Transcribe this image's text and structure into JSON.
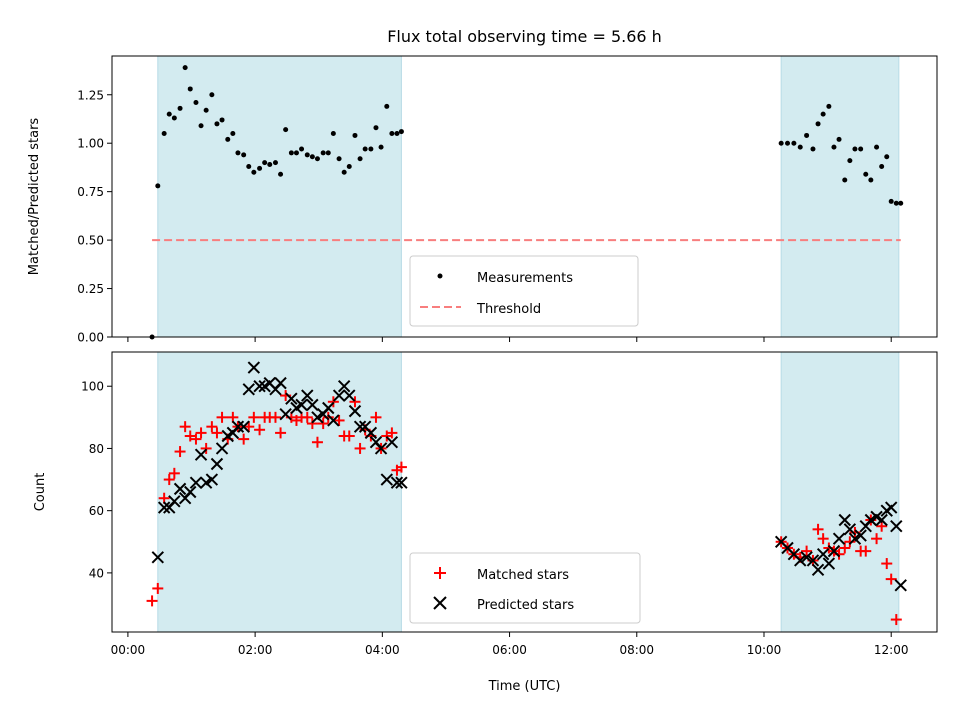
{
  "chart_data": [
    {
      "type": "scatter",
      "title": "Flux total observing time = 5.66 h",
      "ylabel": "Matched/Predicted stars",
      "xlabel": "",
      "ylim": [
        0,
        1.45
      ],
      "grid": false,
      "legend": "bottom-center",
      "yticks": [
        "0.00",
        "0.25",
        "0.50",
        "0.75",
        "1.00",
        "1.25"
      ],
      "observing_windows_hours": [
        [
          0.47,
          4.3
        ],
        [
          10.27,
          12.12
        ]
      ],
      "window_color": "#d3ebf0",
      "threshold": {
        "name": "Threshold",
        "value": 0.5,
        "color": "#f87e7e",
        "style": "dashed"
      },
      "series": [
        {
          "name": "Measurements",
          "color": "#000000",
          "marker": "dot",
          "points": [
            [
              0.38,
              0.0
            ],
            [
              0.47,
              0.78
            ],
            [
              0.57,
              1.05
            ],
            [
              0.65,
              1.15
            ],
            [
              0.73,
              1.13
            ],
            [
              0.82,
              1.18
            ],
            [
              0.9,
              1.39
            ],
            [
              0.98,
              1.28
            ],
            [
              1.07,
              1.21
            ],
            [
              1.15,
              1.09
            ],
            [
              1.23,
              1.17
            ],
            [
              1.32,
              1.25
            ],
            [
              1.4,
              1.1
            ],
            [
              1.48,
              1.12
            ],
            [
              1.57,
              1.02
            ],
            [
              1.65,
              1.05
            ],
            [
              1.73,
              0.95
            ],
            [
              1.82,
              0.94
            ],
            [
              1.9,
              0.88
            ],
            [
              1.98,
              0.85
            ],
            [
              2.07,
              0.87
            ],
            [
              2.15,
              0.9
            ],
            [
              2.23,
              0.89
            ],
            [
              2.32,
              0.9
            ],
            [
              2.4,
              0.84
            ],
            [
              2.48,
              1.07
            ],
            [
              2.57,
              0.95
            ],
            [
              2.65,
              0.95
            ],
            [
              2.73,
              0.97
            ],
            [
              2.82,
              0.94
            ],
            [
              2.9,
              0.93
            ],
            [
              2.98,
              0.92
            ],
            [
              3.07,
              0.95
            ],
            [
              3.15,
              0.95
            ],
            [
              3.23,
              1.05
            ],
            [
              3.32,
              0.92
            ],
            [
              3.4,
              0.85
            ],
            [
              3.48,
              0.88
            ],
            [
              3.57,
              1.04
            ],
            [
              3.65,
              0.92
            ],
            [
              3.73,
              0.97
            ],
            [
              3.82,
              0.97
            ],
            [
              3.9,
              1.08
            ],
            [
              3.98,
              0.98
            ],
            [
              4.07,
              1.19
            ],
            [
              4.15,
              1.05
            ],
            [
              4.23,
              1.05
            ],
            [
              4.3,
              1.06
            ],
            [
              10.27,
              1.0
            ],
            [
              10.37,
              1.0
            ],
            [
              10.47,
              1.0
            ],
            [
              10.57,
              0.98
            ],
            [
              10.67,
              1.04
            ],
            [
              10.77,
              0.97
            ],
            [
              10.85,
              1.1
            ],
            [
              10.93,
              1.15
            ],
            [
              11.02,
              1.19
            ],
            [
              11.1,
              0.98
            ],
            [
              11.18,
              1.02
            ],
            [
              11.27,
              0.81
            ],
            [
              11.35,
              0.91
            ],
            [
              11.43,
              0.97
            ],
            [
              11.52,
              0.97
            ],
            [
              11.6,
              0.84
            ],
            [
              11.68,
              0.81
            ],
            [
              11.77,
              0.98
            ],
            [
              11.85,
              0.88
            ],
            [
              11.93,
              0.93
            ],
            [
              12.0,
              0.7
            ],
            [
              12.08,
              0.69
            ],
            [
              12.15,
              0.69
            ]
          ]
        }
      ]
    },
    {
      "type": "scatter",
      "title": "",
      "ylabel": "Count",
      "xlabel": "Time (UTC)",
      "xlim_hours": [
        -0.25,
        12.72
      ],
      "ylim": [
        21,
        111
      ],
      "grid": false,
      "legend": "bottom-center",
      "xticks": [
        "00:00",
        "02:00",
        "04:00",
        "06:00",
        "08:00",
        "10:00",
        "12:00"
      ],
      "yticks": [
        "40",
        "60",
        "80",
        "100"
      ],
      "observing_windows_hours": [
        [
          0.47,
          4.3
        ],
        [
          10.27,
          12.12
        ]
      ],
      "window_color": "#d3ebf0",
      "series": [
        {
          "name": "Matched stars",
          "color": "#ff0000",
          "marker": "plus",
          "points": [
            [
              0.38,
              31
            ],
            [
              0.47,
              35
            ],
            [
              0.57,
              64
            ],
            [
              0.65,
              70
            ],
            [
              0.73,
              72
            ],
            [
              0.82,
              79
            ],
            [
              0.9,
              87
            ],
            [
              0.98,
              84
            ],
            [
              1.07,
              83
            ],
            [
              1.15,
              85
            ],
            [
              1.23,
              80
            ],
            [
              1.32,
              87
            ],
            [
              1.4,
              85
            ],
            [
              1.48,
              90
            ],
            [
              1.57,
              83
            ],
            [
              1.65,
              90
            ],
            [
              1.73,
              87
            ],
            [
              1.82,
              83
            ],
            [
              1.9,
              87
            ],
            [
              1.98,
              90
            ],
            [
              2.07,
              86
            ],
            [
              2.15,
              90
            ],
            [
              2.23,
              90
            ],
            [
              2.32,
              90
            ],
            [
              2.4,
              85
            ],
            [
              2.48,
              97
            ],
            [
              2.57,
              90
            ],
            [
              2.65,
              89
            ],
            [
              2.73,
              90
            ],
            [
              2.82,
              90
            ],
            [
              2.9,
              88
            ],
            [
              2.98,
              82
            ],
            [
              3.07,
              88
            ],
            [
              3.15,
              90
            ],
            [
              3.23,
              95
            ],
            [
              3.32,
              89
            ],
            [
              3.4,
              84
            ],
            [
              3.48,
              84
            ],
            [
              3.57,
              95
            ],
            [
              3.65,
              80
            ],
            [
              3.73,
              86
            ],
            [
              3.82,
              84
            ],
            [
              3.9,
              90
            ],
            [
              3.98,
              80
            ],
            [
              4.07,
              84
            ],
            [
              4.15,
              85
            ],
            [
              4.23,
              73
            ],
            [
              4.3,
              74
            ],
            [
              10.27,
              50
            ],
            [
              10.37,
              48
            ],
            [
              10.47,
              46
            ],
            [
              10.57,
              45
            ],
            [
              10.67,
              47
            ],
            [
              10.77,
              44
            ],
            [
              10.85,
              54
            ],
            [
              10.93,
              51
            ],
            [
              11.02,
              48
            ],
            [
              11.1,
              47
            ],
            [
              11.18,
              46
            ],
            [
              11.27,
              48
            ],
            [
              11.35,
              50
            ],
            [
              11.43,
              53
            ],
            [
              11.52,
              47
            ],
            [
              11.6,
              47
            ],
            [
              11.68,
              57
            ],
            [
              11.77,
              51
            ],
            [
              11.85,
              55
            ],
            [
              11.93,
              43
            ],
            [
              12.0,
              38
            ],
            [
              12.08,
              25
            ]
          ]
        },
        {
          "name": "Predicted stars",
          "color": "#000000",
          "marker": "x",
          "points": [
            [
              0.47,
              45
            ],
            [
              0.57,
              61
            ],
            [
              0.65,
              61
            ],
            [
              0.73,
              63
            ],
            [
              0.82,
              67
            ],
            [
              0.9,
              64
            ],
            [
              0.98,
              66
            ],
            [
              1.07,
              69
            ],
            [
              1.15,
              78
            ],
            [
              1.23,
              69
            ],
            [
              1.32,
              70
            ],
            [
              1.4,
              75
            ],
            [
              1.48,
              80
            ],
            [
              1.57,
              84
            ],
            [
              1.65,
              85
            ],
            [
              1.73,
              87
            ],
            [
              1.82,
              87
            ],
            [
              1.9,
              99
            ],
            [
              1.98,
              106
            ],
            [
              2.07,
              100
            ],
            [
              2.15,
              100
            ],
            [
              2.23,
              101
            ],
            [
              2.32,
              99
            ],
            [
              2.4,
              101
            ],
            [
              2.48,
              91
            ],
            [
              2.57,
              96
            ],
            [
              2.65,
              93
            ],
            [
              2.73,
              94
            ],
            [
              2.82,
              97
            ],
            [
              2.9,
              94
            ],
            [
              2.98,
              90
            ],
            [
              3.07,
              91
            ],
            [
              3.15,
              93
            ],
            [
              3.23,
              89
            ],
            [
              3.32,
              97
            ],
            [
              3.4,
              100
            ],
            [
              3.48,
              97
            ],
            [
              3.57,
              92
            ],
            [
              3.65,
              87
            ],
            [
              3.73,
              87
            ],
            [
              3.82,
              85
            ],
            [
              3.9,
              82
            ],
            [
              3.98,
              80
            ],
            [
              4.07,
              70
            ],
            [
              4.15,
              82
            ],
            [
              4.23,
              69
            ],
            [
              4.3,
              69
            ],
            [
              10.27,
              50
            ],
            [
              10.37,
              48
            ],
            [
              10.47,
              46
            ],
            [
              10.57,
              44
            ],
            [
              10.67,
              45
            ],
            [
              10.77,
              44
            ],
            [
              10.85,
              41
            ],
            [
              10.93,
              46
            ],
            [
              11.02,
              43
            ],
            [
              11.1,
              47
            ],
            [
              11.18,
              51
            ],
            [
              11.27,
              57
            ],
            [
              11.35,
              54
            ],
            [
              11.43,
              51
            ],
            [
              11.52,
              52
            ],
            [
              11.6,
              55
            ],
            [
              11.68,
              57
            ],
            [
              11.77,
              58
            ],
            [
              11.85,
              57
            ],
            [
              11.93,
              60
            ],
            [
              12.0,
              61
            ],
            [
              12.08,
              55
            ],
            [
              12.15,
              36
            ]
          ]
        }
      ]
    }
  ]
}
